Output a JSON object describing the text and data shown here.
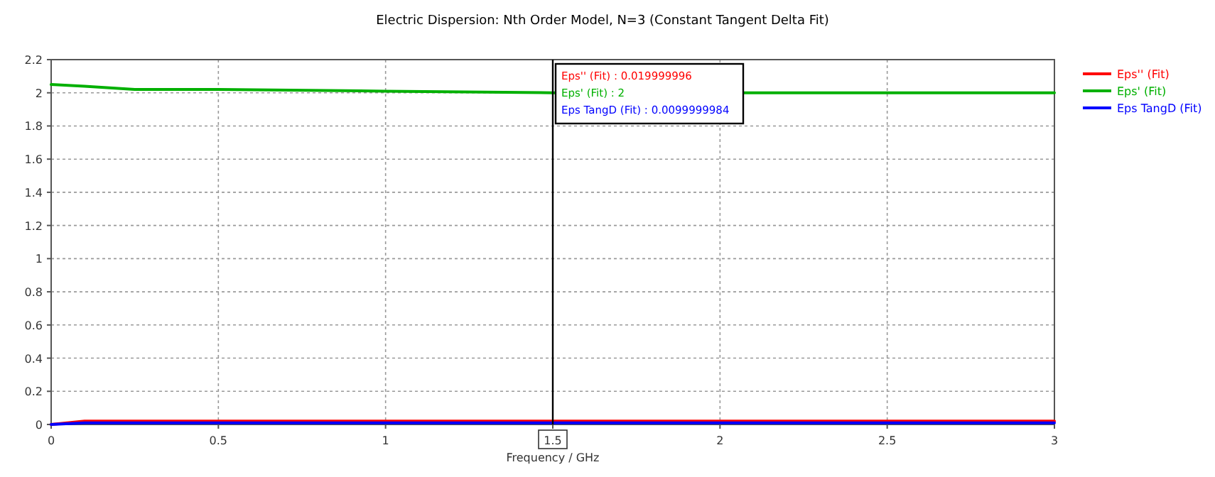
{
  "chart_data": {
    "type": "line",
    "title": "Electric Dispersion: Nth Order Model, N=3 (Constant Tangent Delta Fit)",
    "xlabel": "Frequency / GHz",
    "x": [
      0,
      0.1,
      0.25,
      0.5,
      1,
      1.5,
      2.5,
      3
    ],
    "series": [
      {
        "name": "Eps'' (Fit)",
        "color": "#ff0000",
        "values": [
          0,
          0.02,
          0.02,
          0.02,
          0.02,
          0.02,
          0.02,
          0.02
        ]
      },
      {
        "name": "Eps' (Fit)",
        "color": "#00b000",
        "values": [
          2.05,
          2.04,
          2.02,
          2.02,
          2.01,
          2.0,
          2.0,
          2.0
        ]
      },
      {
        "name": "Eps TangD (Fit)",
        "color": "#0000ff",
        "values": [
          0,
          0.01,
          0.01,
          0.01,
          0.01,
          0.01,
          0.01,
          0.01
        ]
      }
    ],
    "xlim": [
      0,
      3
    ],
    "xticks": [
      0,
      0.5,
      1,
      1.5,
      2,
      2.5,
      3
    ],
    "ylim": [
      0,
      2.2
    ],
    "yticks": [
      0,
      0.2,
      0.4,
      0.6,
      0.8,
      1,
      1.2,
      1.4,
      1.6,
      1.8,
      2,
      2.2
    ],
    "ref_lines": [
      {
        "axis": "x",
        "value": 1.5,
        "label": "1.5",
        "color": "#000000"
      }
    ],
    "annotations": [
      "Eps'' (Fit) : 0.019999996",
      "Eps' (Fit) : 2",
      "Eps TangD (Fit) : 0.0099999984"
    ],
    "grid": true,
    "legend": "right",
    "marker": "none",
    "line_style": "solid"
  }
}
